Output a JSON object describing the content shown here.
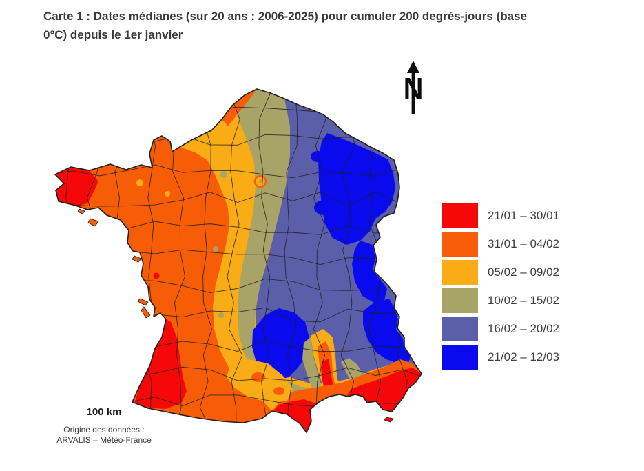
{
  "title": {
    "line1": "Carte 1 : Dates médianes (sur 20 ans : 2006-2025) pour cumuler 200 degrés-jours (base",
    "line2": "0°C) depuis le 1er janvier"
  },
  "map": {
    "type": "choropleth",
    "region": "France métropolitaine (contours départementaux)",
    "north_label": "N",
    "scale_label": "100 km",
    "source_line1": "Origine des données :",
    "source_line2": "ARVALIS – Météo-France"
  },
  "legend": {
    "items": [
      {
        "label": "21/01 – 30/01",
        "color": "#f70808"
      },
      {
        "label": "31/01 – 04/02",
        "color": "#f75d07"
      },
      {
        "label": "05/02 – 09/02",
        "color": "#f9ac15"
      },
      {
        "label": "10/02 – 15/02",
        "color": "#a8a367"
      },
      {
        "label": "16/02 – 20/02",
        "color": "#5b5fa9"
      },
      {
        "label": "21/02 – 12/03",
        "color": "#0a0aef"
      }
    ]
  },
  "colors": {
    "red": "#f70808",
    "orange": "#f75d07",
    "yellow": "#f9ac15",
    "olive": "#a8a367",
    "slate": "#5b5fa9",
    "blue": "#0a0aef",
    "border": "#1f1f1f",
    "arrow": "#0d0d0d"
  }
}
